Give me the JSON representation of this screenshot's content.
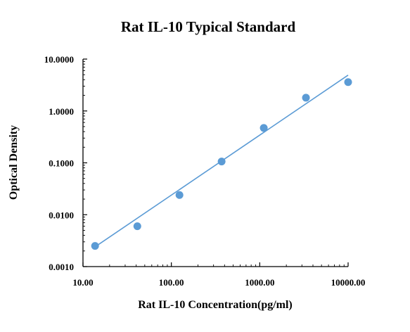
{
  "chart_data": {
    "type": "scatter",
    "title": "Rat IL-10 Typical Standard",
    "xlabel": "Rat IL-10 Concentration(pg/ml)",
    "ylabel": "Optical Density",
    "x_scale": "log",
    "y_scale": "log",
    "xlim": [
      10,
      10000
    ],
    "ylim": [
      0.001,
      10
    ],
    "x_ticks": [
      10,
      100,
      1000,
      10000
    ],
    "x_tick_labels": [
      "10.00",
      "100.00",
      "1000.00",
      "10000.00"
    ],
    "y_ticks": [
      0.001,
      0.01,
      0.1,
      1,
      10
    ],
    "y_tick_labels": [
      "0.0010",
      "0.0100",
      "0.1000",
      "1.0000",
      "10.0000"
    ],
    "grid": false,
    "legend": "none",
    "point_color": "#5b9bd5",
    "line_color": "#5b9bd5",
    "points": [
      {
        "x": 13.7,
        "y": 0.0025
      },
      {
        "x": 41.2,
        "y": 0.006
      },
      {
        "x": 123.5,
        "y": 0.024
      },
      {
        "x": 370.4,
        "y": 0.106
      },
      {
        "x": 1111.1,
        "y": 0.47
      },
      {
        "x": 3333.3,
        "y": 1.8
      },
      {
        "x": 10000,
        "y": 3.6
      }
    ],
    "fit_line": [
      {
        "x": 13.7,
        "y": 0.0024
      },
      {
        "x": 10000,
        "y": 4.9
      }
    ]
  }
}
